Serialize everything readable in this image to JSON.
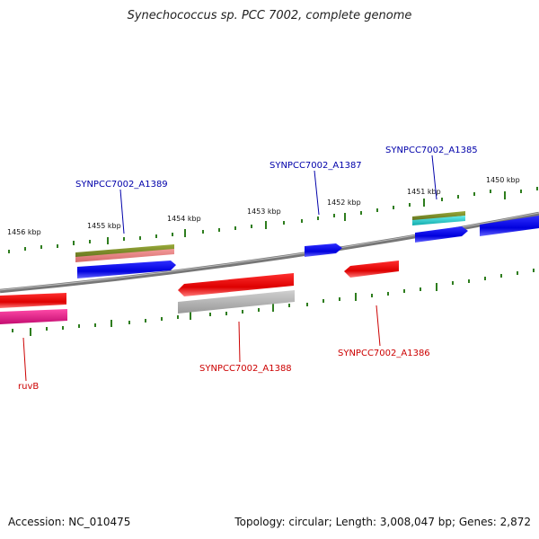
{
  "title": "Synechococcus sp. PCC 7002, complete genome",
  "footer": {
    "accession": "Accession: NC_010475",
    "summary": "Topology: circular; Length: 3,008,047 bp; Genes: 2,872"
  },
  "scale_labels": [
    "1456 kbp",
    "1455 kbp",
    "1454 kbp",
    "1453 kbp",
    "1452 kbp",
    "1451 kbp",
    "1450 kbp"
  ],
  "gene_labels": {
    "a1389": "SYNPCC7002_A1389",
    "a1387": "SYNPCC7002_A1387",
    "a1385": "SYNPCC7002_A1385",
    "a1388": "SYNPCC7002_A1388",
    "a1386": "SYNPCC7002_A1386",
    "ruvb": "ruvB"
  },
  "colors": {
    "backbone": "#777777",
    "tick": "#2e7d1e",
    "cds_forward": "#0000ee",
    "cds_reverse": "#ee0000",
    "label_forward": "#0000aa",
    "label_reverse": "#cc0000",
    "olive": "#7a8a2a",
    "salmon": "#e98080",
    "cyan": "#22cccc",
    "magenta": "#e3148a",
    "gray": "#aaaaaa"
  }
}
